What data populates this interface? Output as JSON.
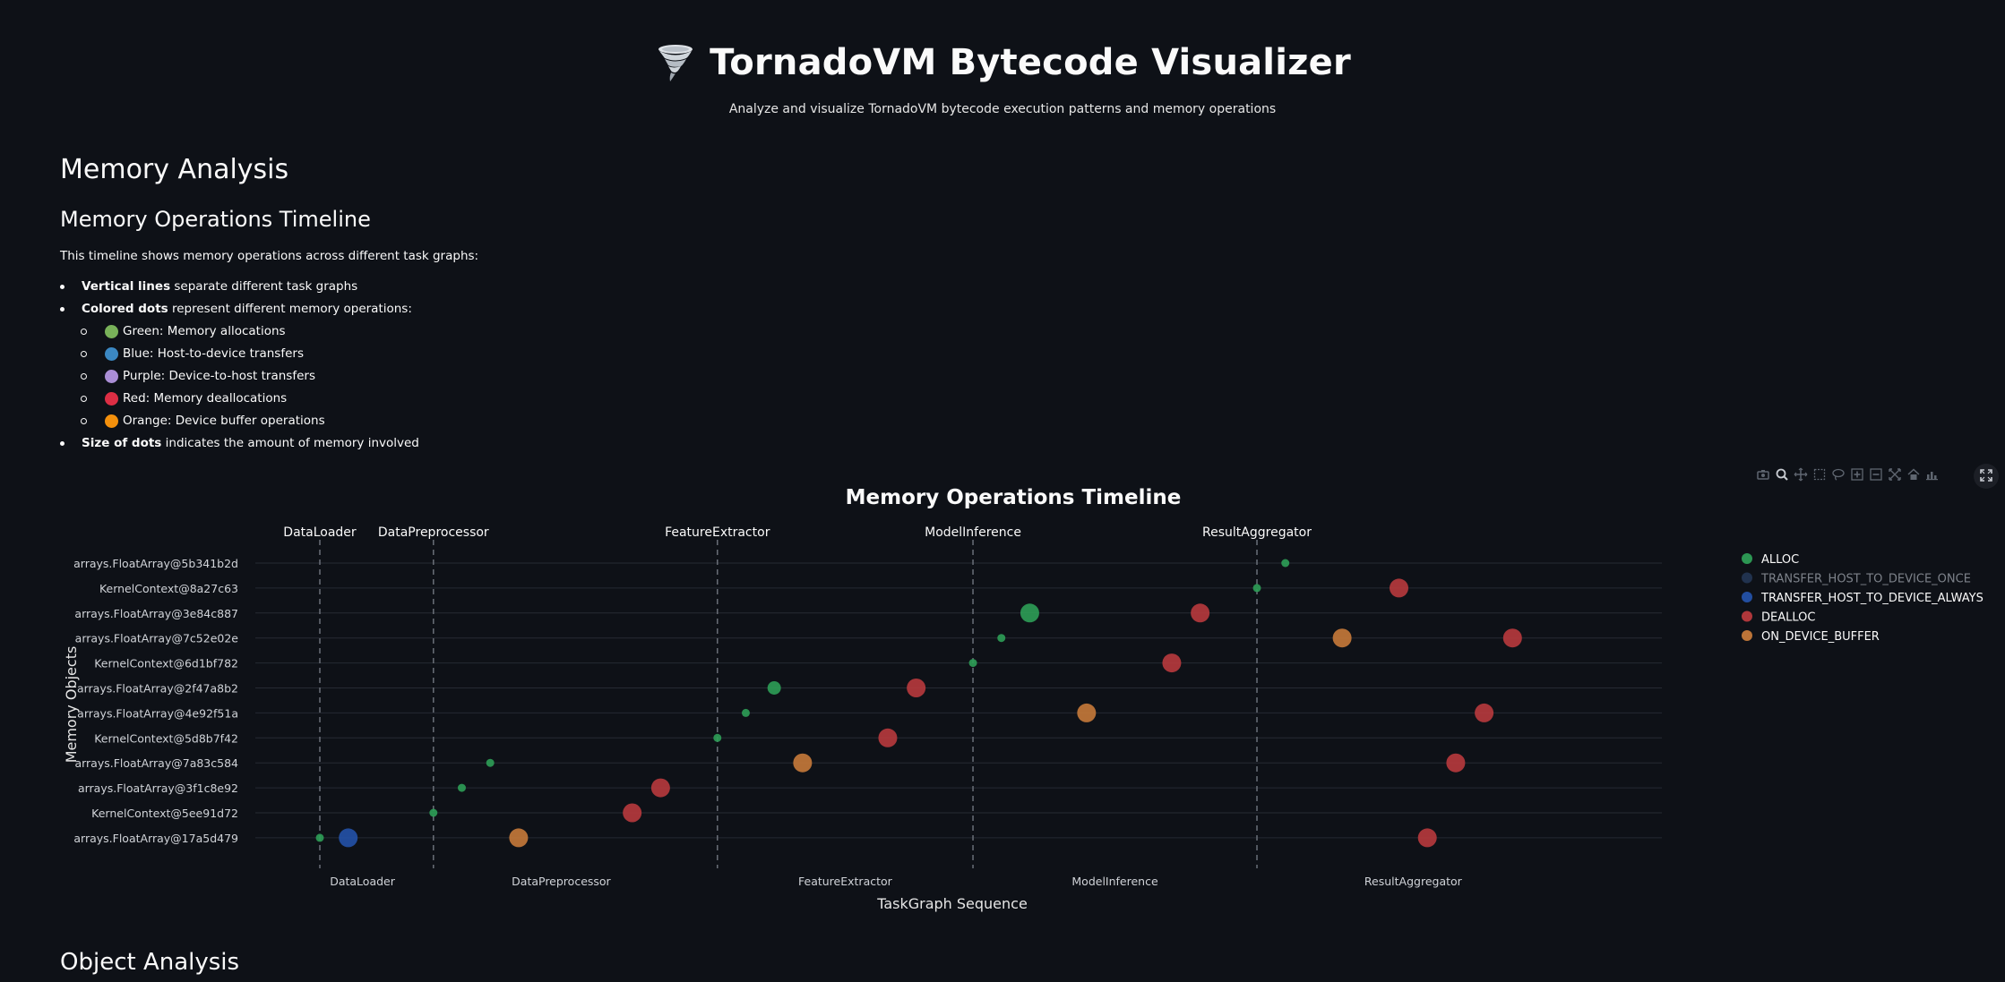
{
  "app": {
    "title": "TornadoVM Bytecode Visualizer",
    "title_icon": "tornado-icon",
    "subtitle": "Analyze and visualize TornadoVM bytecode execution patterns and memory operations"
  },
  "section": {
    "heading": "Memory Analysis",
    "subheading": "Memory Operations Timeline",
    "intro": "This timeline shows memory operations across different task graphs:",
    "bullets": [
      {
        "bold": "Vertical lines",
        "text": " separate different task graphs"
      },
      {
        "bold": "Colored dots",
        "text": " represent different memory operations:"
      },
      {
        "bold": "Size of dots",
        "text": " indicates the amount of memory involved"
      }
    ],
    "sub_bullets": [
      {
        "text": "Green: Memory allocations",
        "color": "#78b159"
      },
      {
        "text": "Blue: Host-to-device transfers",
        "color": "#3b88c3"
      },
      {
        "text": "Purple: Device-to-host transfers",
        "color": "#aa8ed6"
      },
      {
        "text": "Red: Memory deallocations",
        "color": "#dd2e44"
      },
      {
        "text": "Orange: Device buffer operations",
        "color": "#f4900c"
      }
    ],
    "next_heading": "Object Analysis"
  },
  "toolbar": {
    "icons": [
      "camera-icon",
      "zoom-icon",
      "pan-icon",
      "box-select-icon",
      "lasso-select-icon",
      "zoom-in-icon",
      "zoom-out-icon",
      "autoscale-icon",
      "reset-axes-icon",
      "plotly-logo-icon"
    ],
    "fullscreen_icon": "fullscreen-icon"
  },
  "chart_data": {
    "type": "scatter",
    "title": "Memory Operations Timeline",
    "xlabel": "TaskGraph Sequence",
    "ylabel": "Memory Objects",
    "xlim": [
      -0.5,
      44.5
    ],
    "categories": [
      "arrays.FloatArray@17a5d479",
      "KernelContext@5ee91d72",
      "arrays.FloatArray@3f1c8e92",
      "arrays.FloatArray@7a83c584",
      "KernelContext@5d8b7f42",
      "arrays.FloatArray@4e92f51a",
      "arrays.FloatArray@2f47a8b2",
      "KernelContext@6d1bf782",
      "arrays.FloatArray@7c52e02e",
      "arrays.FloatArray@3e84c887",
      "KernelContext@8a27c63",
      "arrays.FloatArray@5b341b2d"
    ],
    "task_graphs": [
      {
        "name": "DataLoader",
        "start": 0
      },
      {
        "name": "DataPreprocessor",
        "start": 4
      },
      {
        "name": "FeatureExtractor",
        "start": 14
      },
      {
        "name": "ModelInference",
        "start": 23
      },
      {
        "name": "ResultAggregator",
        "start": 33
      }
    ],
    "bottom_labels": [
      {
        "name": "DataLoader",
        "x": 1.5
      },
      {
        "name": "DataPreprocessor",
        "x": 8.5
      },
      {
        "name": "FeatureExtractor",
        "x": 18.5
      },
      {
        "name": "ModelInference",
        "x": 28
      },
      {
        "name": "ResultAggregator",
        "x": 38.5
      }
    ],
    "legend_position": "top-right",
    "legend": [
      {
        "name": "ALLOC",
        "color": "#2e9e56",
        "dimmed": false
      },
      {
        "name": "TRANSFER_HOST_TO_DEVICE_ONCE",
        "color": "#2f4a73",
        "dimmed": true
      },
      {
        "name": "TRANSFER_HOST_TO_DEVICE_ALWAYS",
        "color": "#2452a8",
        "dimmed": false
      },
      {
        "name": "DEALLOC",
        "color": "#b83a3d",
        "dimmed": false
      },
      {
        "name": "ON_DEVICE_BUFFER",
        "color": "#c67a3a",
        "dimmed": false
      }
    ],
    "series": [
      {
        "name": "ALLOC",
        "color": "#2e9e56",
        "points": [
          {
            "x": 0,
            "y": "arrays.FloatArray@17a5d479",
            "size": 1
          },
          {
            "x": 4,
            "y": "KernelContext@5ee91d72",
            "size": 1
          },
          {
            "x": 5,
            "y": "arrays.FloatArray@3f1c8e92",
            "size": 1
          },
          {
            "x": 6,
            "y": "arrays.FloatArray@7a83c584",
            "size": 1
          },
          {
            "x": 14,
            "y": "KernelContext@5d8b7f42",
            "size": 1
          },
          {
            "x": 15,
            "y": "arrays.FloatArray@4e92f51a",
            "size": 1
          },
          {
            "x": 16,
            "y": "arrays.FloatArray@2f47a8b2",
            "size": 2
          },
          {
            "x": 23,
            "y": "KernelContext@6d1bf782",
            "size": 1
          },
          {
            "x": 24,
            "y": "arrays.FloatArray@7c52e02e",
            "size": 1
          },
          {
            "x": 25,
            "y": "arrays.FloatArray@3e84c887",
            "size": 3
          },
          {
            "x": 33,
            "y": "KernelContext@8a27c63",
            "size": 1
          },
          {
            "x": 34,
            "y": "arrays.FloatArray@5b341b2d",
            "size": 1
          }
        ]
      },
      {
        "name": "TRANSFER_HOST_TO_DEVICE_ALWAYS",
        "color": "#2452a8",
        "points": [
          {
            "x": 1,
            "y": "arrays.FloatArray@17a5d479",
            "size": 3
          }
        ]
      },
      {
        "name": "DEALLOC",
        "color": "#b83a3d",
        "points": [
          {
            "x": 11,
            "y": "KernelContext@5ee91d72",
            "size": 3
          },
          {
            "x": 12,
            "y": "arrays.FloatArray@3f1c8e92",
            "size": 3
          },
          {
            "x": 20,
            "y": "KernelContext@5d8b7f42",
            "size": 3
          },
          {
            "x": 21,
            "y": "arrays.FloatArray@2f47a8b2",
            "size": 3
          },
          {
            "x": 30,
            "y": "KernelContext@6d1bf782",
            "size": 3
          },
          {
            "x": 31,
            "y": "arrays.FloatArray@3e84c887",
            "size": 3
          },
          {
            "x": 38,
            "y": "KernelContext@8a27c63",
            "size": 3
          },
          {
            "x": 39,
            "y": "arrays.FloatArray@17a5d479",
            "size": 3
          },
          {
            "x": 40,
            "y": "arrays.FloatArray@7a83c584",
            "size": 3
          },
          {
            "x": 41,
            "y": "arrays.FloatArray@4e92f51a",
            "size": 3
          },
          {
            "x": 42,
            "y": "arrays.FloatArray@7c52e02e",
            "size": 3
          }
        ]
      },
      {
        "name": "ON_DEVICE_BUFFER",
        "color": "#c67a3a",
        "points": [
          {
            "x": 7,
            "y": "arrays.FloatArray@17a5d479",
            "size": 3
          },
          {
            "x": 17,
            "y": "arrays.FloatArray@7a83c584",
            "size": 3
          },
          {
            "x": 27,
            "y": "arrays.FloatArray@4e92f51a",
            "size": 3
          },
          {
            "x": 36,
            "y": "arrays.FloatArray@7c52e02e",
            "size": 3
          }
        ]
      }
    ]
  }
}
